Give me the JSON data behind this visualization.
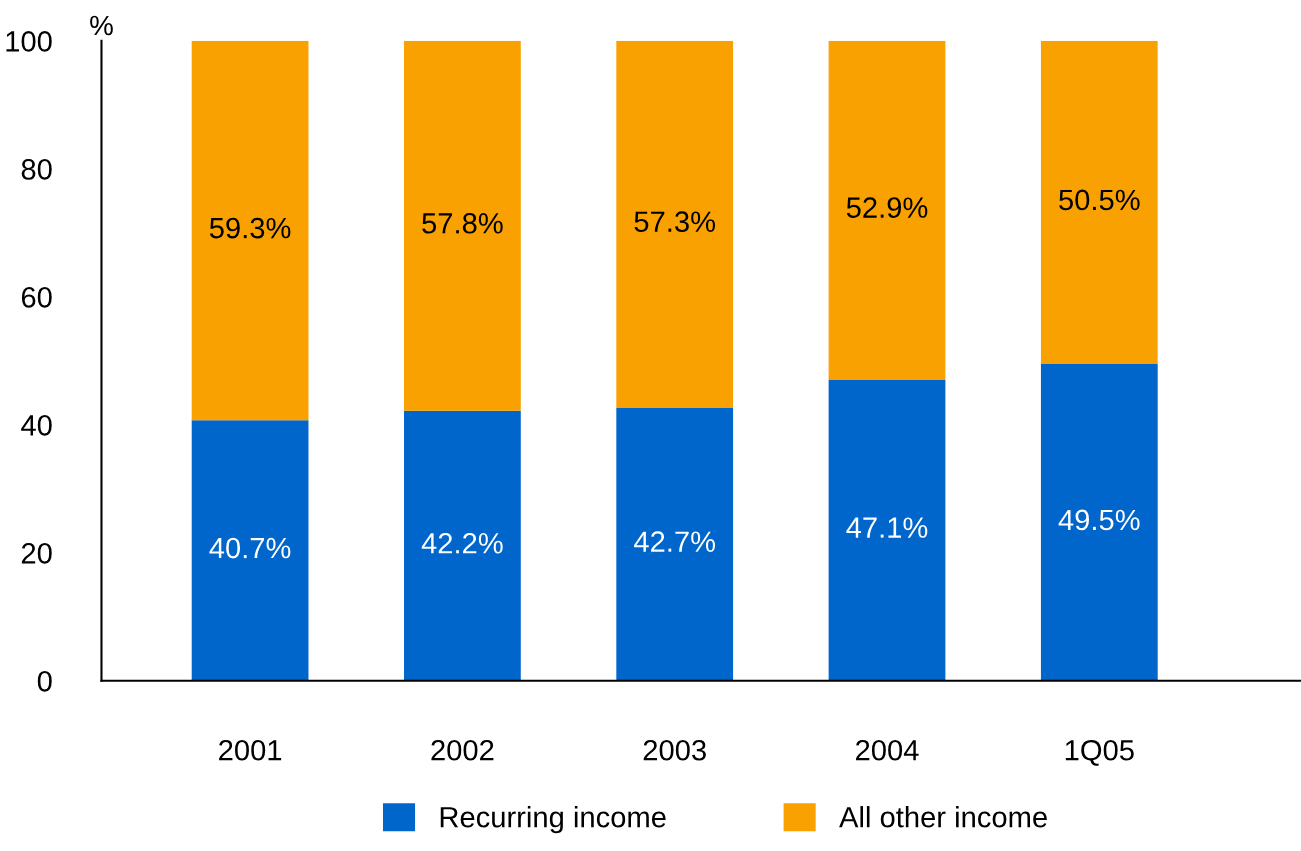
{
  "chart_data": {
    "type": "bar",
    "stacked": true,
    "ylabel": "%",
    "categories": [
      "2001",
      "2002",
      "2003",
      "2004",
      "1Q05"
    ],
    "series": [
      {
        "name": "Recurring income",
        "color": "#0066cc",
        "values": [
          40.7,
          42.2,
          42.7,
          47.1,
          49.5
        ],
        "value_labels": [
          "40.7%",
          "42.2%",
          "42.7%",
          "47.1%",
          "49.5%"
        ]
      },
      {
        "name": "All other income",
        "color": "#f9a100",
        "values": [
          59.3,
          57.8,
          57.3,
          52.9,
          50.5
        ],
        "value_labels": [
          "59.3%",
          "57.8%",
          "57.3%",
          "52.9%",
          "50.5%"
        ]
      }
    ],
    "ylim": [
      0,
      100
    ],
    "yticks": [
      0,
      20,
      40,
      60,
      80,
      100
    ],
    "grid": false,
    "legend": "bottom"
  }
}
